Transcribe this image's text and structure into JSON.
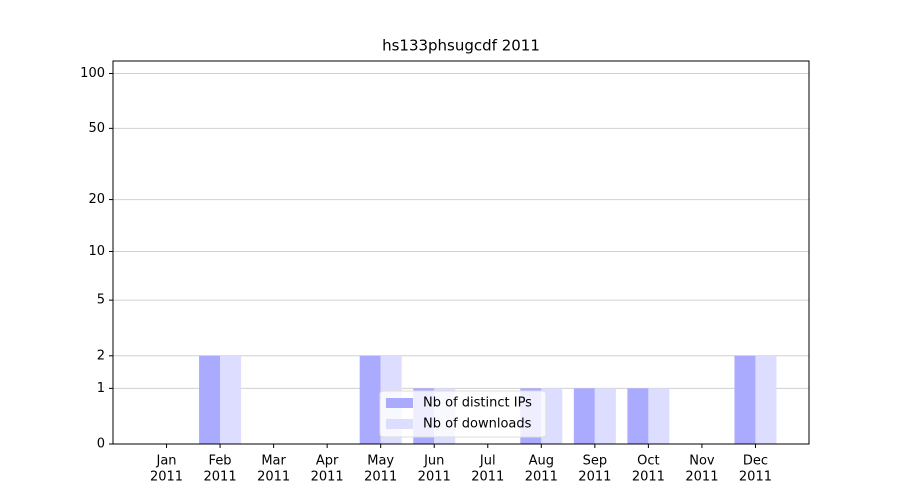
{
  "chart_data": {
    "type": "bar",
    "title": "hs133phsugcdf 2011",
    "categories": [
      [
        "Jan",
        "2011"
      ],
      [
        "Feb",
        "2011"
      ],
      [
        "Mar",
        "2011"
      ],
      [
        "Apr",
        "2011"
      ],
      [
        "May",
        "2011"
      ],
      [
        "Jun",
        "2011"
      ],
      [
        "Jul",
        "2011"
      ],
      [
        "Aug",
        "2011"
      ],
      [
        "Sep",
        "2011"
      ],
      [
        "Oct",
        "2011"
      ],
      [
        "Nov",
        "2011"
      ],
      [
        "Dec",
        "2011"
      ]
    ],
    "series": [
      {
        "name": "Nb of distinct IPs",
        "color": "#aaaaff",
        "values": [
          0,
          2,
          0,
          0,
          2,
          1,
          0,
          1,
          1,
          1,
          0,
          2
        ]
      },
      {
        "name": "Nb of downloads",
        "color": "#ddddff",
        "values": [
          0,
          2,
          0,
          0,
          2,
          1,
          0,
          1,
          1,
          1,
          0,
          2
        ]
      }
    ],
    "yscale": "symlog",
    "ylim": [
      0,
      117
    ],
    "yticks": [
      0,
      1,
      2,
      5,
      10,
      20,
      50,
      100
    ],
    "grid": true,
    "legend": "lower center"
  }
}
